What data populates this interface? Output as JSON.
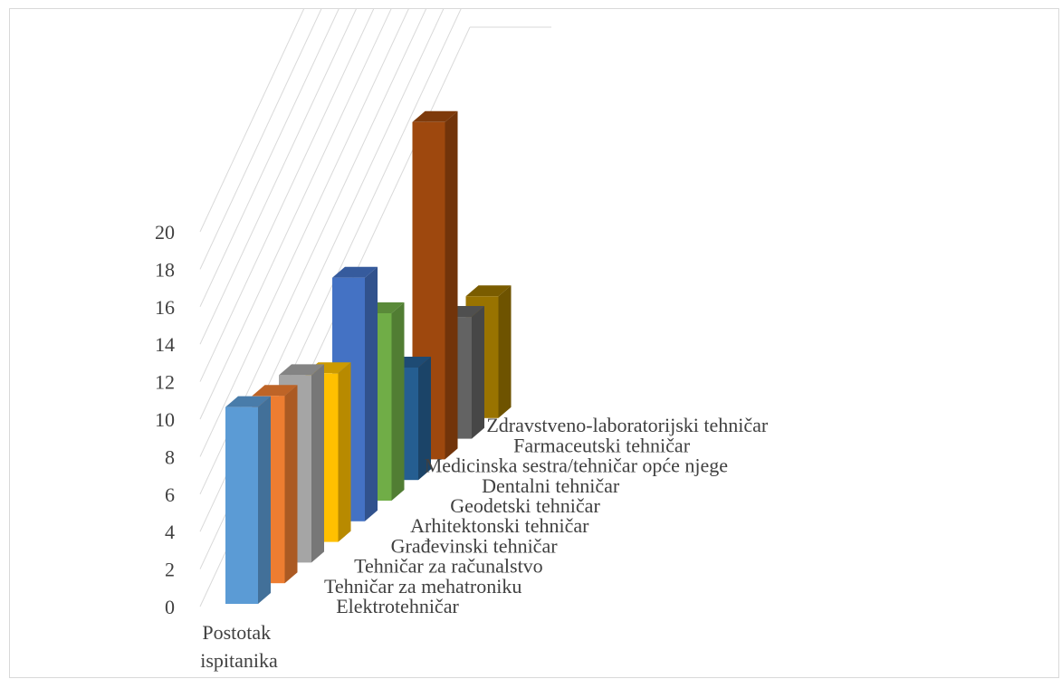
{
  "chart_data": {
    "type": "bar",
    "style": "3d-column",
    "categories": [
      "Postotak ispitanika"
    ],
    "category_label_lines": [
      "Postotak",
      "ispitanika"
    ],
    "series": [
      {
        "name": "Elektrotehničar",
        "values": [
          10.5
        ],
        "color": "#5b9bd5"
      },
      {
        "name": "Tehničar za mehatroniku",
        "values": [
          10
        ],
        "color": "#ed7d31"
      },
      {
        "name": "Tehničar za računalstvo",
        "values": [
          10
        ],
        "color": "#a5a5a5"
      },
      {
        "name": "Građevinski tehničar",
        "values": [
          9
        ],
        "color": "#ffc000"
      },
      {
        "name": "Arhitektonski tehničar",
        "values": [
          13
        ],
        "color": "#4472c4"
      },
      {
        "name": "Geodetski tehničar",
        "values": [
          10
        ],
        "color": "#70ad47"
      },
      {
        "name": "Dentalni tehničar",
        "values": [
          6
        ],
        "color": "#255e91"
      },
      {
        "name": "Medicinska sestra/tehničar opće njege",
        "values": [
          18
        ],
        "color": "#9e480e"
      },
      {
        "name": "Farmaceutski tehničar",
        "values": [
          6.5
        ],
        "color": "#636363"
      },
      {
        "name": "Zdravstveno-laboratorijski tehničar",
        "values": [
          6.5
        ],
        "color": "#997300"
      }
    ],
    "y_ticks": [
      0,
      2,
      4,
      6,
      8,
      10,
      12,
      14,
      16,
      18,
      20
    ],
    "ylim": [
      0,
      20
    ],
    "grid": true,
    "legend": "none"
  }
}
